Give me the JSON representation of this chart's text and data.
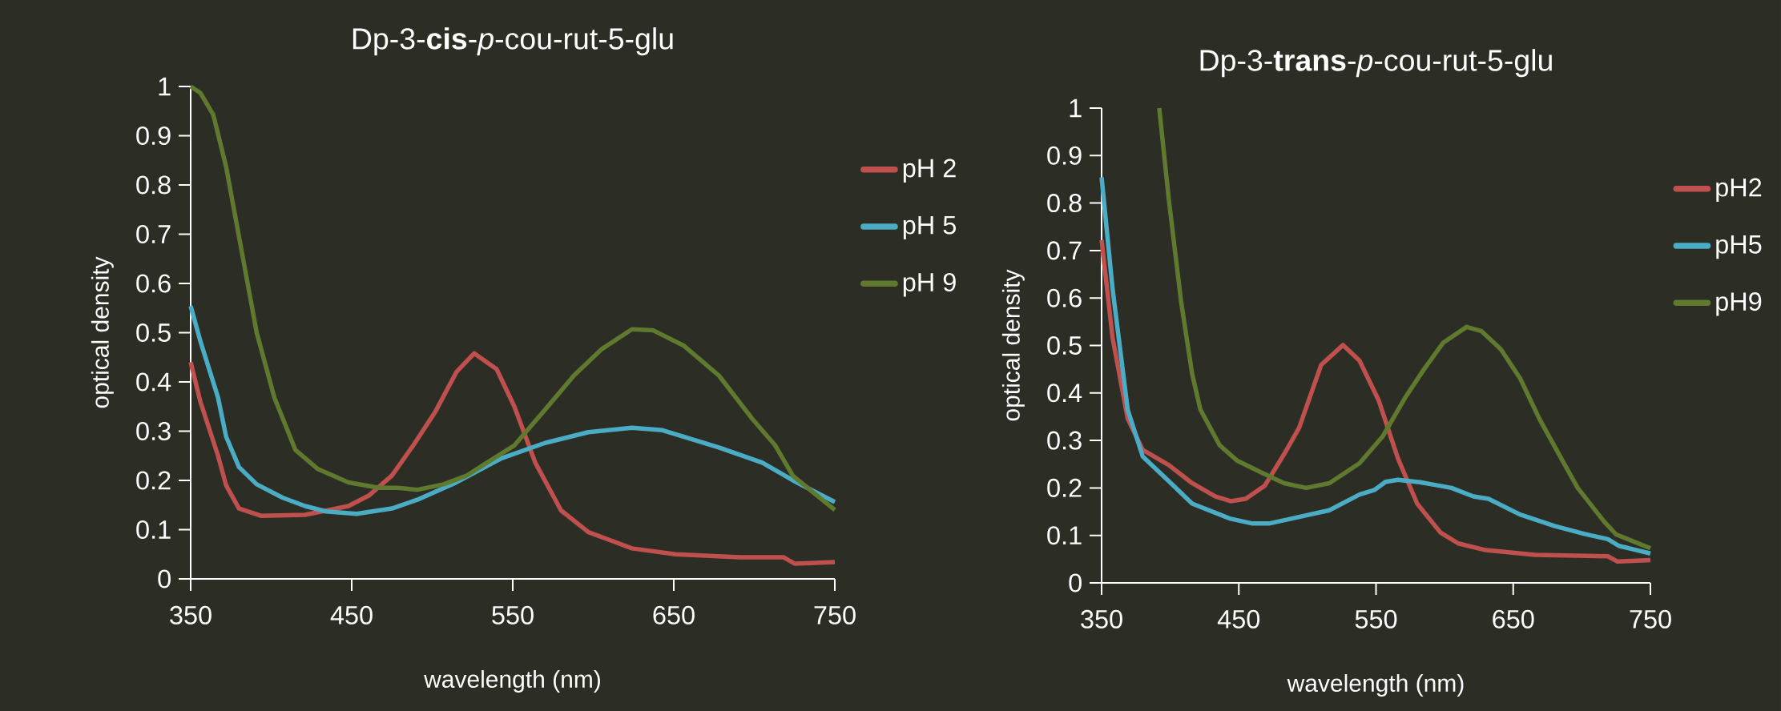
{
  "chart_data": [
    {
      "type": "line",
      "title": "Dp-3-**cis**-*p*-cou-rut-5-glu",
      "xlabel": "wavelength (nm)",
      "ylabel": "optical density",
      "xlim": [
        350,
        750
      ],
      "ylim": [
        0,
        1
      ],
      "xticks": [
        350,
        450,
        550,
        650,
        750
      ],
      "yticks": [
        0,
        0.1,
        0.2,
        0.3,
        0.4,
        0.5,
        0.6,
        0.7,
        0.8,
        0.9,
        1
      ],
      "legend": "right",
      "series": [
        {
          "name": "pH 2",
          "color": "#c0504d",
          "x": [
            350,
            356,
            367,
            372,
            380,
            394,
            421,
            448,
            461,
            475,
            488,
            502,
            515,
            526,
            540,
            551,
            564,
            580,
            597,
            624,
            651,
            691,
            718,
            725,
            750
          ],
          "values": [
            0.44,
            0.36,
            0.25,
            0.19,
            0.143,
            0.128,
            0.13,
            0.148,
            0.17,
            0.21,
            0.27,
            0.34,
            0.42,
            0.458,
            0.426,
            0.35,
            0.236,
            0.139,
            0.095,
            0.062,
            0.05,
            0.044,
            0.044,
            0.031,
            0.034
          ]
        },
        {
          "name": "pH 5",
          "color": "#4bacc6",
          "x": [
            350,
            356,
            367,
            372,
            380,
            391,
            407,
            421,
            434,
            453,
            475,
            491,
            515,
            543,
            570,
            597,
            624,
            643,
            678,
            705,
            724,
            750
          ],
          "values": [
            0.554,
            0.483,
            0.368,
            0.289,
            0.227,
            0.192,
            0.165,
            0.148,
            0.137,
            0.132,
            0.143,
            0.161,
            0.196,
            0.245,
            0.276,
            0.298,
            0.307,
            0.302,
            0.267,
            0.236,
            0.2,
            0.156
          ]
        },
        {
          "name": "pH 9",
          "color": "#5f7a2f",
          "x": [
            350,
            356,
            364,
            372,
            380,
            391,
            402,
            415,
            429,
            448,
            467,
            478,
            491,
            507,
            521,
            534,
            551,
            572,
            588,
            605,
            624,
            637,
            656,
            678,
            699,
            713,
            724,
            750
          ],
          "values": [
            1.0,
            0.987,
            0.943,
            0.837,
            0.695,
            0.5,
            0.368,
            0.262,
            0.223,
            0.196,
            0.185,
            0.185,
            0.181,
            0.192,
            0.209,
            0.236,
            0.271,
            0.351,
            0.413,
            0.466,
            0.507,
            0.505,
            0.474,
            0.413,
            0.324,
            0.271,
            0.209,
            0.14
          ]
        }
      ]
    },
    {
      "type": "line",
      "title": "Dp-3-**trans**-*p*-cou-rut-5-glu",
      "xlabel": "wavelength (nm)",
      "ylabel": "optical density",
      "xlim": [
        350,
        750
      ],
      "ylim": [
        0,
        1
      ],
      "xticks": [
        350,
        450,
        550,
        650,
        750
      ],
      "yticks": [
        0,
        0.1,
        0.2,
        0.3,
        0.4,
        0.5,
        0.6,
        0.7,
        0.8,
        0.9,
        1
      ],
      "legend": "right",
      "series": [
        {
          "name": "pH2",
          "color": "#c0504d",
          "x": [
            350,
            358,
            369,
            380,
            399,
            416,
            433,
            444,
            455,
            469,
            483,
            494,
            510,
            526,
            538,
            552,
            566,
            580,
            597,
            610,
            630,
            666,
            719,
            726,
            750
          ],
          "values": [
            0.722,
            0.516,
            0.346,
            0.28,
            0.248,
            0.21,
            0.182,
            0.172,
            0.177,
            0.205,
            0.271,
            0.327,
            0.459,
            0.501,
            0.468,
            0.384,
            0.262,
            0.167,
            0.106,
            0.083,
            0.069,
            0.059,
            0.056,
            0.045,
            0.048
          ]
        },
        {
          "name": "pH5",
          "color": "#4bacc6",
          "x": [
            350,
            358,
            369,
            380,
            399,
            416,
            444,
            460,
            472,
            488,
            516,
            538,
            549,
            557,
            566,
            582,
            605,
            621,
            632,
            655,
            680,
            702,
            719,
            727,
            750
          ],
          "values": [
            0.854,
            0.619,
            0.365,
            0.266,
            0.214,
            0.167,
            0.135,
            0.125,
            0.125,
            0.135,
            0.153,
            0.186,
            0.196,
            0.213,
            0.217,
            0.212,
            0.2,
            0.182,
            0.177,
            0.144,
            0.12,
            0.103,
            0.092,
            0.078,
            0.062
          ]
        },
        {
          "name": "pH9",
          "color": "#5f7a2f",
          "x": [
            392,
            399,
            408,
            416,
            422,
            436,
            449,
            469,
            483,
            499,
            516,
            538,
            555,
            571,
            585,
            599,
            616,
            627,
            641,
            655,
            669,
            686,
            697,
            716,
            725,
            750
          ],
          "values": [
            1.0,
            0.807,
            0.591,
            0.44,
            0.365,
            0.29,
            0.257,
            0.229,
            0.21,
            0.2,
            0.21,
            0.252,
            0.309,
            0.389,
            0.45,
            0.506,
            0.539,
            0.53,
            0.492,
            0.431,
            0.346,
            0.257,
            0.2,
            0.13,
            0.102,
            0.073
          ]
        }
      ]
    }
  ]
}
